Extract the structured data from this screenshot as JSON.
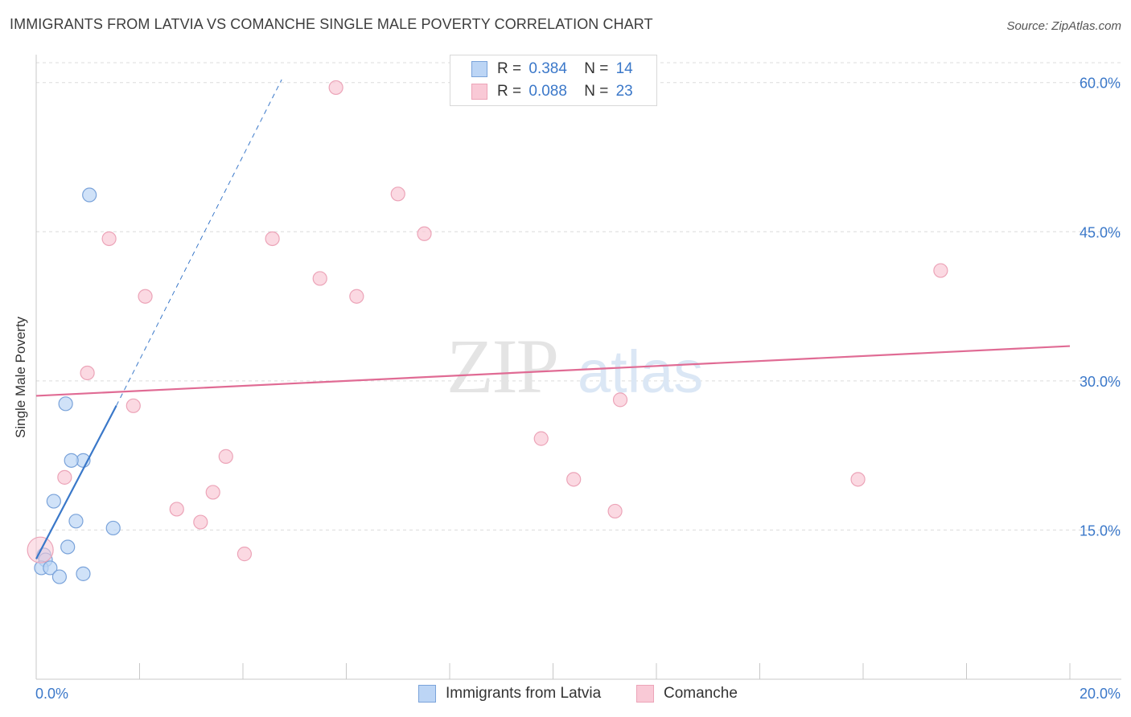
{
  "title": "IMMIGRANTS FROM LATVIA VS COMANCHE SINGLE MALE POVERTY CORRELATION CHART",
  "source": "Source: ZipAtlas.com",
  "legend": {
    "r_label": "R =",
    "n_label": "N =",
    "rows": [
      {
        "name": "Immigrants from Latvia",
        "r": "0.384",
        "n": "14"
      },
      {
        "name": "Comanche",
        "r": "0.088",
        "n": "23"
      }
    ]
  },
  "watermark": {
    "zip": "ZIP",
    "atlas": "atlas"
  },
  "colors": {
    "blue_fill": "#bcd5f5",
    "blue_stroke": "#7aa3da",
    "blue_line": "#3a78c9",
    "pink_fill": "#f9c9d6",
    "pink_stroke": "#eca4b8",
    "pink_line": "#e06b94",
    "axis_label": "#3b78c9"
  },
  "chart_data": {
    "type": "scatter",
    "title": "IMMIGRANTS FROM LATVIA VS COMANCHE SINGLE MALE POVERTY CORRELATION CHART",
    "xlabel": "",
    "ylabel": "Single Male Poverty",
    "xlim": [
      0,
      20
    ],
    "ylim": [
      0,
      62
    ],
    "x_tick_labels": [
      "0.0%",
      "20.0%"
    ],
    "y_tick_labels": [
      "15.0%",
      "30.0%",
      "45.0%",
      "60.0%"
    ],
    "y_ticks": [
      15,
      30,
      45,
      60
    ],
    "grid": true,
    "series": [
      {
        "name": "Immigrants from Latvia",
        "color": "blue",
        "points": [
          [
            1.03,
            48.7
          ],
          [
            0.57,
            27.7
          ],
          [
            0.91,
            22.0
          ],
          [
            0.68,
            22.0
          ],
          [
            0.34,
            17.9
          ],
          [
            0.77,
            15.9
          ],
          [
            1.49,
            15.2
          ],
          [
            0.61,
            13.3
          ],
          [
            0.15,
            12.5
          ],
          [
            0.18,
            12.0
          ],
          [
            0.1,
            11.2
          ],
          [
            0.27,
            11.2
          ],
          [
            0.91,
            10.6
          ],
          [
            0.45,
            10.3
          ]
        ],
        "trend": {
          "x0": 0.0,
          "y0": 12.1,
          "x1": 1.55,
          "y1": 27.5,
          "dash_x1": 4.75,
          "dash_y1": 60.3
        }
      },
      {
        "name": "Comanche",
        "color": "pink",
        "points": [
          [
            5.8,
            59.5
          ],
          [
            7.0,
            48.8
          ],
          [
            1.41,
            44.3
          ],
          [
            4.57,
            44.3
          ],
          [
            7.51,
            44.8
          ],
          [
            17.5,
            41.1
          ],
          [
            5.49,
            40.3
          ],
          [
            2.11,
            38.5
          ],
          [
            6.2,
            38.5
          ],
          [
            0.99,
            30.8
          ],
          [
            11.3,
            28.1
          ],
          [
            1.88,
            27.5
          ],
          [
            9.77,
            24.2
          ],
          [
            3.67,
            22.4
          ],
          [
            0.55,
            20.3
          ],
          [
            10.4,
            20.1
          ],
          [
            15.9,
            20.1
          ],
          [
            3.42,
            18.8
          ],
          [
            2.72,
            17.1
          ],
          [
            11.2,
            16.9
          ],
          [
            3.18,
            15.8
          ],
          [
            4.03,
            12.6
          ],
          [
            0.08,
            13.0
          ]
        ],
        "trend": {
          "x0": 0.0,
          "y0": 28.5,
          "x1": 20.0,
          "y1": 33.5
        }
      }
    ]
  }
}
